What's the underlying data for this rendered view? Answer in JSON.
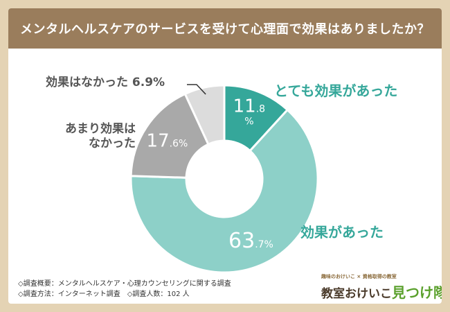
{
  "title": "メンタルヘルスケアのサービスを受けて心理面で効果はありましたか？",
  "chart_data": {
    "type": "pie",
    "categories": [
      "とても効果があった",
      "効果があった",
      "あまり効果はなかった",
      "効果はなかった"
    ],
    "values": [
      11.8,
      63.7,
      17.6,
      6.9
    ],
    "colors": [
      "#35a79a",
      "#8dd0c8",
      "#a9a9a9",
      "#dcdcdc"
    ],
    "value_labels": [
      {
        "int": "11",
        "dec": ".8",
        "unit": "%"
      },
      {
        "int": "63",
        "dec": ".7",
        "unit": "%"
      },
      {
        "int": "17",
        "dec": ".6",
        "unit": "%"
      },
      {
        "int": "",
        "dec": "",
        "unit": ""
      }
    ]
  },
  "labels": {
    "very_effective": "とても効果があった",
    "effective": "効果があった",
    "not_very_line1": "あまり効果は",
    "not_very_line2": "なかった",
    "not_effective": "効果はなかった 6.9%"
  },
  "footnotes": {
    "line1": "◇調査概要：メンタルヘルスケア・心理カウンセリングに関する調査",
    "line2": "◇調査方法：インターネット調査　◇調査人数：102 人"
  },
  "logo": {
    "tagline": "趣味のおけいこ × 資格取得の教室",
    "name_part1": "教室おけいこ",
    "name_part2": "見つけ隊"
  }
}
